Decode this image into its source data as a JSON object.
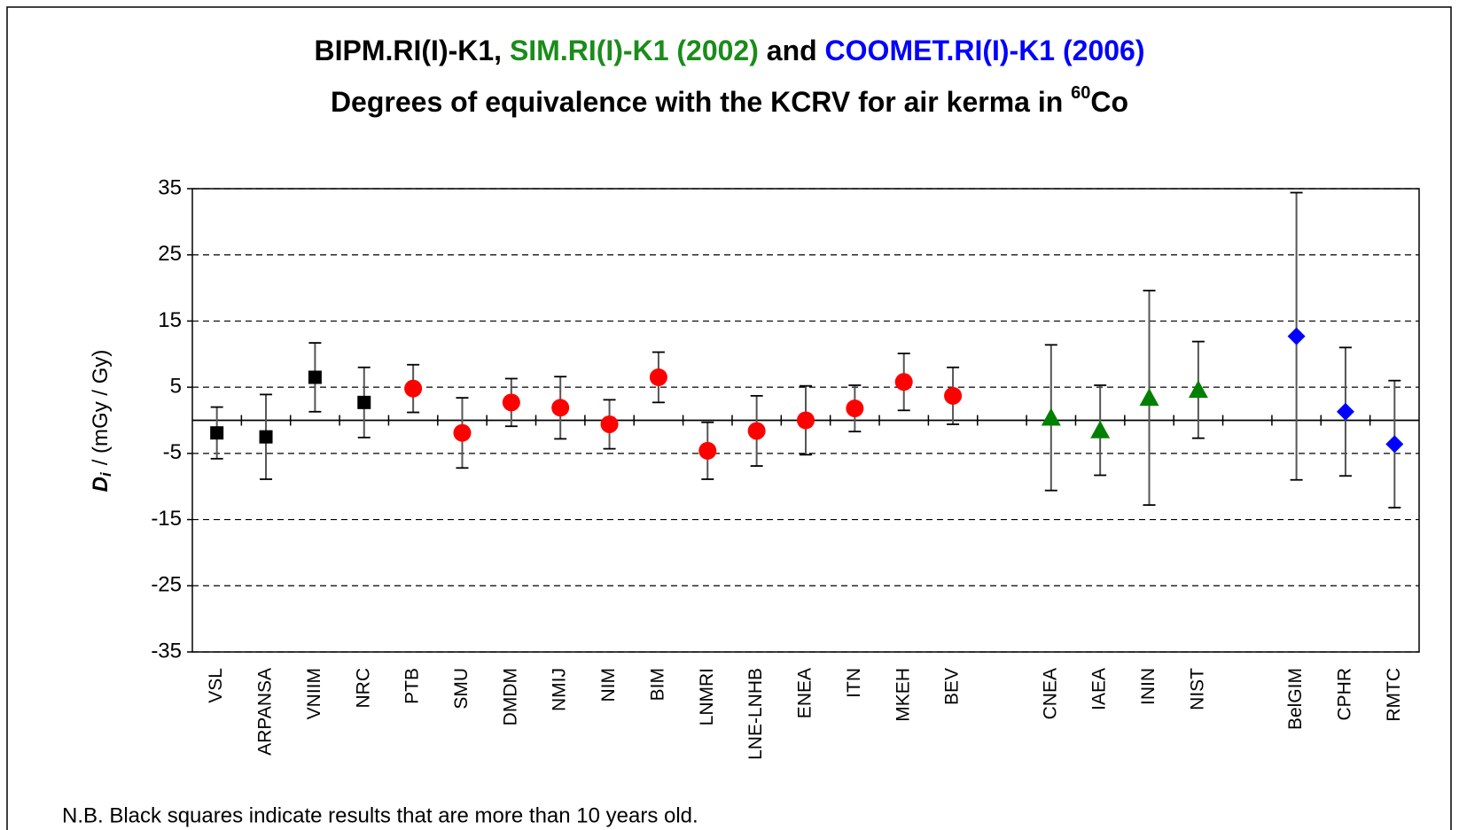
{
  "chart_data": {
    "type": "errorbar",
    "title": [
      {
        "text": "BIPM.RI(I)-K1,",
        "color": "#000000"
      },
      {
        "text": "SIM.RI(I)-K1 (2002)",
        "color": "#1a8c1a"
      },
      {
        "text": "and",
        "color": "#000000"
      },
      {
        "text": "COOMET.RI(I)-K1 (2006)",
        "color": "#0000ff"
      }
    ],
    "subtitle": {
      "text": "Degrees of equivalence with the KCRV for air kerma in",
      "superscript": "60",
      "suffix": "Co"
    },
    "ylabel": {
      "symbol": "D",
      "subscript": "i",
      "unit": "/ (mGy / Gy)"
    },
    "footnote": "N.B. Black squares indicate results that are more than 10 years old.",
    "categories": [
      "VSL",
      "ARPANSA",
      "VNIIM",
      "NRC",
      "PTB",
      "SMU",
      "DMDM",
      "NMIJ",
      "NIM",
      "BIM",
      "LNMRI",
      "LNE-LNHB",
      "ENEA",
      "ITN",
      "MKEH",
      "BEV",
      null,
      "CNEA",
      "IAEA",
      "ININ",
      "NIST",
      null,
      "BelGIM",
      "CPHR",
      "RMTC"
    ],
    "series": [
      {
        "marker": "square",
        "color": "#000000",
        "values": [
          -1.9,
          -2.5,
          6.5,
          2.7,
          null,
          null,
          null,
          null,
          null,
          null,
          null,
          null,
          null,
          null,
          null,
          null,
          null,
          null,
          null,
          null,
          null,
          null,
          null,
          null,
          null
        ],
        "errors": [
          3.9,
          6.4,
          5.2,
          5.3,
          null,
          null,
          null,
          null,
          null,
          null,
          null,
          null,
          null,
          null,
          null,
          null,
          null,
          null,
          null,
          null,
          null,
          null,
          null,
          null,
          null
        ]
      },
      {
        "marker": "circle",
        "color": "#ff0000",
        "values": [
          null,
          null,
          null,
          null,
          4.8,
          -1.9,
          2.7,
          1.9,
          -0.6,
          6.5,
          -4.6,
          -1.6,
          0,
          1.8,
          5.8,
          3.7,
          null,
          null,
          null,
          null,
          null,
          null,
          null,
          null,
          null
        ],
        "errors": [
          null,
          null,
          null,
          null,
          3.6,
          5.3,
          3.6,
          4.7,
          3.7,
          3.8,
          4.3,
          5.3,
          5.2,
          3.5,
          4.3,
          4.3,
          null,
          null,
          null,
          null,
          null,
          null,
          null,
          null,
          null
        ]
      },
      {
        "marker": "triangle",
        "color": "#008000",
        "values": [
          null,
          null,
          null,
          null,
          null,
          null,
          null,
          null,
          null,
          null,
          null,
          null,
          null,
          null,
          null,
          null,
          null,
          0.4,
          -1.5,
          3.4,
          4.6,
          null,
          null,
          null,
          null
        ],
        "errors": [
          null,
          null,
          null,
          null,
          null,
          null,
          null,
          null,
          null,
          null,
          null,
          null,
          null,
          null,
          null,
          null,
          null,
          11,
          6.8,
          16.2,
          7.3,
          null,
          null,
          null,
          null
        ]
      },
      {
        "marker": "diamond",
        "color": "#0000ff",
        "values": [
          null,
          null,
          null,
          null,
          null,
          null,
          null,
          null,
          null,
          null,
          null,
          null,
          null,
          null,
          null,
          null,
          null,
          null,
          null,
          null,
          null,
          null,
          12.7,
          1.3,
          -3.6
        ],
        "errors": [
          null,
          null,
          null,
          null,
          null,
          null,
          null,
          null,
          null,
          null,
          null,
          null,
          null,
          null,
          null,
          null,
          null,
          null,
          null,
          null,
          null,
          null,
          21.7,
          9.7,
          9.6
        ]
      }
    ],
    "ylim": [
      -35,
      35
    ],
    "yticks": [
      -35,
      -25,
      -15,
      -5,
      5,
      15,
      25,
      35
    ],
    "reference_line": 0,
    "grid": true
  }
}
